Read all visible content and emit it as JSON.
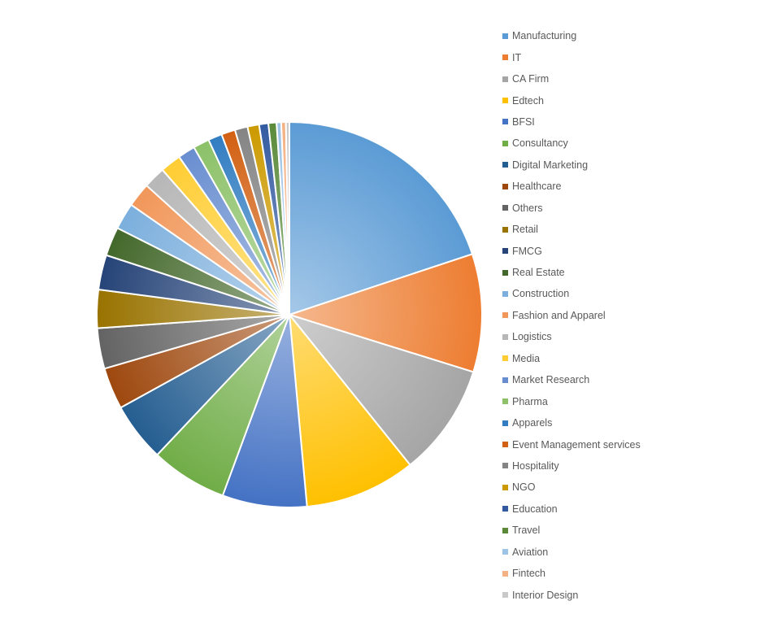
{
  "chart_data": {
    "type": "pie",
    "title": "",
    "legend_position": "right",
    "categories": [
      "Manufacturing",
      "IT",
      "CA Firm",
      "Edtech",
      "BFSI",
      "Consultancy",
      "Digital Marketing",
      "Healthcare",
      "Others",
      "Retail",
      "FMCG",
      "Real Estate",
      "Construction",
      "Fashion and Apparel",
      "Logistics",
      "Media",
      "Market Research",
      "Pharma",
      "Apparels",
      "Event Management services",
      "Hospitality",
      "NGO",
      "Education",
      "Travel",
      "Aviation",
      "Fintech",
      "Interior Design"
    ],
    "values": [
      20.5,
      10.2,
      9.7,
      9.6,
      7.3,
      6.6,
      5.1,
      3.6,
      3.5,
      3.3,
      3.0,
      2.5,
      2.3,
      2.1,
      1.9,
      1.8,
      1.5,
      1.4,
      1.2,
      1.2,
      1.1,
      1.0,
      0.8,
      0.7,
      0.4,
      0.4,
      0.3
    ],
    "colors": [
      "#5B9BD5",
      "#ED7D31",
      "#A5A5A5",
      "#FFC000",
      "#4472C4",
      "#70AD47",
      "#255E91",
      "#9E480E",
      "#636363",
      "#997300",
      "#264478",
      "#43682B",
      "#7CAFDD",
      "#F1975A",
      "#B7B7B7",
      "#FFCD33",
      "#698ED0",
      "#8CC168",
      "#327DC2",
      "#D26012",
      "#848484",
      "#CC9A00",
      "#335AA1",
      "#5A8A39",
      "#9DC3E6",
      "#F4B183",
      "#C9C9C9"
    ]
  }
}
